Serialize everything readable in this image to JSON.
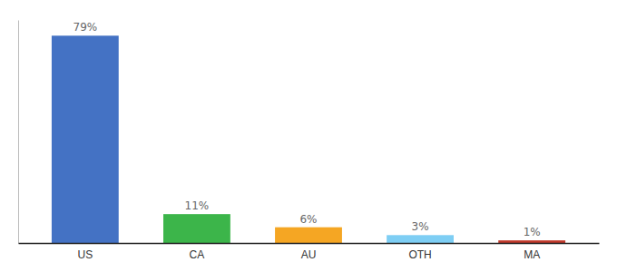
{
  "chart_data": {
    "type": "bar",
    "categories": [
      "US",
      "CA",
      "AU",
      "OTH",
      "MA"
    ],
    "values": [
      79,
      11,
      6,
      3,
      1
    ],
    "value_labels": [
      "79%",
      "11%",
      "6%",
      "3%",
      "1%"
    ],
    "colors": [
      "#4472c4",
      "#3cb54a",
      "#f5a623",
      "#7ecef4",
      "#c0392b"
    ],
    "ylim": [
      0,
      85
    ],
    "data_labels": true,
    "tick_labels": "x",
    "grid": false
  }
}
